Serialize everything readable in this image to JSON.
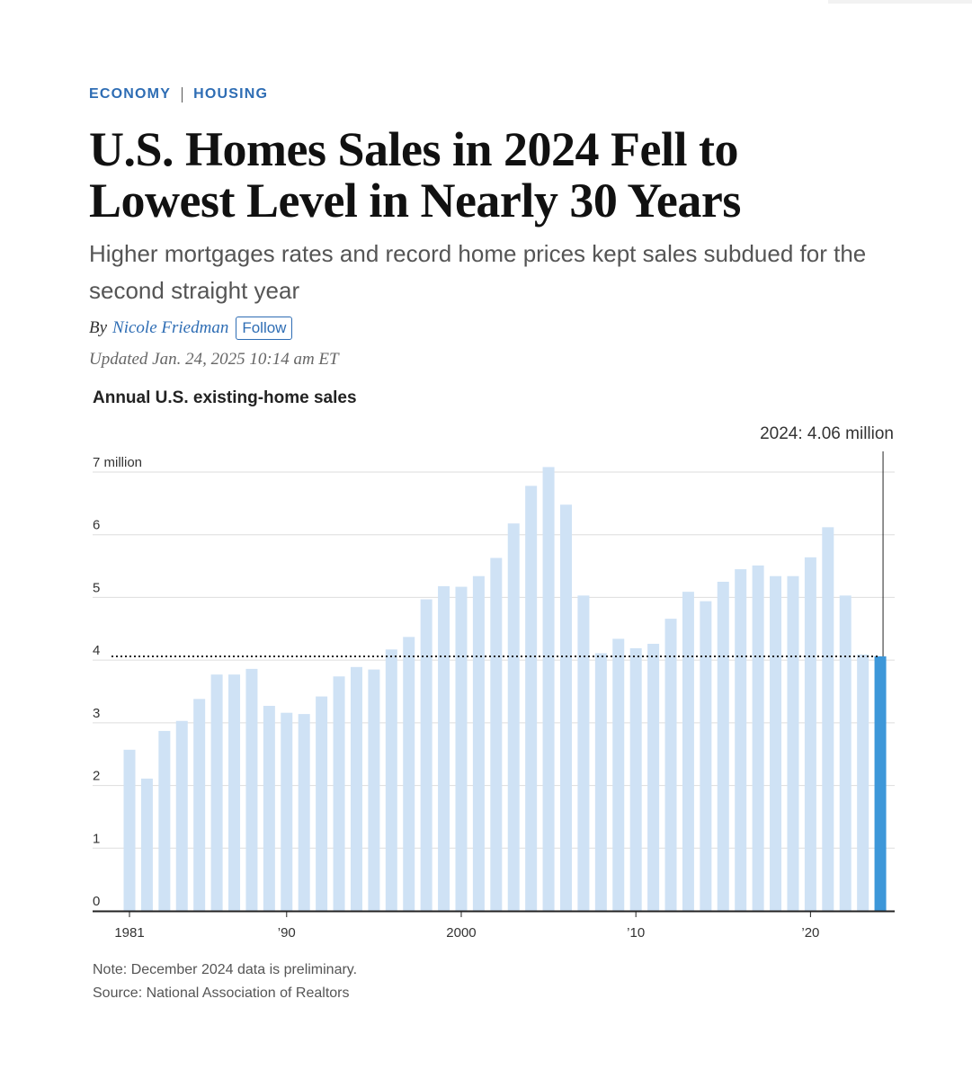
{
  "article": {
    "section": "ECONOMY",
    "subsection": "HOUSING",
    "headline_line1": "U.S. Homes Sales in 2024 Fell to",
    "headline_line2": "Lowest Level in Nearly 30 Years",
    "dek": "Higher mortgages rates and record home prices kept sales subdued for the second straight year",
    "byline_prefix": "By",
    "author": "Nicole Friedman",
    "follow_label": "Follow",
    "updated": "Updated Jan. 24, 2025 10:14 am ET"
  },
  "chart_data": {
    "type": "bar",
    "title": "Annual U.S. existing-home sales",
    "xlabel": "",
    "ylabel": "",
    "ylim": [
      0,
      7
    ],
    "y_ticks": [
      {
        "value": 0,
        "label": "0"
      },
      {
        "value": 1,
        "label": "1"
      },
      {
        "value": 2,
        "label": "2"
      },
      {
        "value": 3,
        "label": "3"
      },
      {
        "value": 4,
        "label": "4"
      },
      {
        "value": 5,
        "label": "5"
      },
      {
        "value": 6,
        "label": "6"
      },
      {
        "value": 7,
        "label": "7 million"
      }
    ],
    "x_ticks": [
      {
        "year": 1981,
        "label": "1981"
      },
      {
        "year": 1990,
        "label": "’90"
      },
      {
        "year": 2000,
        "label": "2000"
      },
      {
        "year": 2010,
        "label": "’10"
      },
      {
        "year": 2020,
        "label": "’20"
      }
    ],
    "categories": [
      1981,
      1982,
      1983,
      1984,
      1985,
      1986,
      1987,
      1988,
      1989,
      1990,
      1991,
      1992,
      1993,
      1994,
      1995,
      1996,
      1997,
      1998,
      1999,
      2000,
      2001,
      2002,
      2003,
      2004,
      2005,
      2006,
      2007,
      2008,
      2009,
      2010,
      2011,
      2012,
      2013,
      2014,
      2015,
      2016,
      2017,
      2018,
      2019,
      2020,
      2021,
      2022,
      2023,
      2024
    ],
    "values": [
      2.57,
      2.11,
      2.87,
      3.03,
      3.38,
      3.77,
      3.77,
      3.86,
      3.27,
      3.16,
      3.14,
      3.42,
      3.74,
      3.89,
      3.85,
      4.17,
      4.37,
      4.97,
      5.18,
      5.17,
      5.34,
      5.63,
      6.18,
      6.78,
      7.08,
      6.48,
      5.03,
      4.11,
      4.34,
      4.19,
      4.26,
      4.66,
      5.09,
      4.94,
      5.25,
      5.45,
      5.51,
      5.34,
      5.34,
      5.64,
      6.12,
      5.03,
      4.09,
      4.06
    ],
    "highlight": {
      "year": 2024,
      "value": 4.06,
      "label": "2024: 4.06 million"
    },
    "reference_line_value": 4.06,
    "colors": {
      "bar": "#cfe2f5",
      "highlight": "#3d97d9",
      "grid": "#dddddd",
      "axis": "#222222",
      "text": "#333333"
    }
  },
  "notes": {
    "note": "Note: December 2024 data is preliminary.",
    "source": "Source: National Association of Realtors"
  }
}
